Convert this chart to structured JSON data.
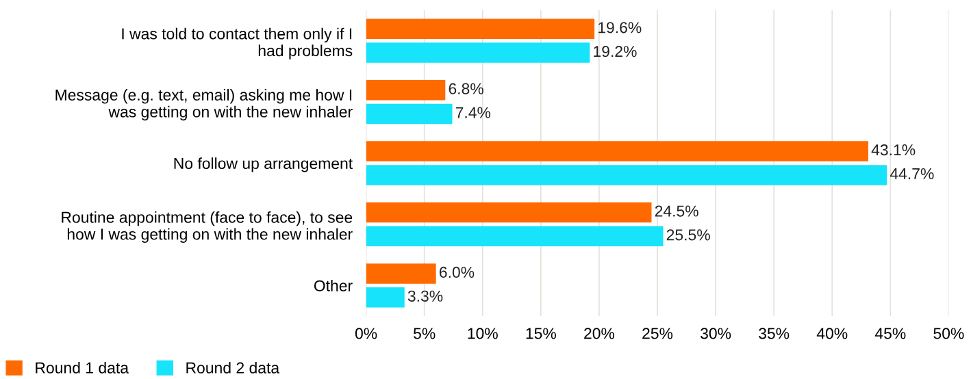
{
  "chart_data": {
    "type": "bar",
    "orientation": "horizontal",
    "categories": [
      "I was told to contact them only if I\nhad problems",
      "Message (e.g. text, email) asking me how I\nwas getting on with the new inhaler",
      "No follow up arrangement",
      "Routine appointment (face to face), to see\nhow I was getting on with the new inhaler",
      "Other"
    ],
    "series": [
      {
        "name": "Round 1 data",
        "color": "#ff6a00",
        "values": [
          19.6,
          6.8,
          43.1,
          24.5,
          6.0
        ],
        "value_labels": [
          "19.6%",
          "6.8%",
          "43.1%",
          "24.5%",
          "6.0%"
        ]
      },
      {
        "name": "Round 2 data",
        "color": "#17e3fb",
        "values": [
          19.2,
          7.4,
          44.7,
          25.5,
          3.3
        ],
        "value_labels": [
          "19.2%",
          "7.4%",
          "44.7%",
          "25.5%",
          "3.3%"
        ]
      }
    ],
    "xlim": [
      0,
      50
    ],
    "xticks": [
      {
        "value": 0,
        "label": "0%"
      },
      {
        "value": 5,
        "label": "5%"
      },
      {
        "value": 10,
        "label": "10%"
      },
      {
        "value": 15,
        "label": "15%"
      },
      {
        "value": 20,
        "label": "20%"
      },
      {
        "value": 25,
        "label": "25%"
      },
      {
        "value": 30,
        "label": "30%"
      },
      {
        "value": 35,
        "label": "35%"
      },
      {
        "value": 40,
        "label": "40%"
      },
      {
        "value": 45,
        "label": "45%"
      },
      {
        "value": 50,
        "label": "50%"
      }
    ],
    "grid": "x",
    "legend": "bottom left"
  }
}
